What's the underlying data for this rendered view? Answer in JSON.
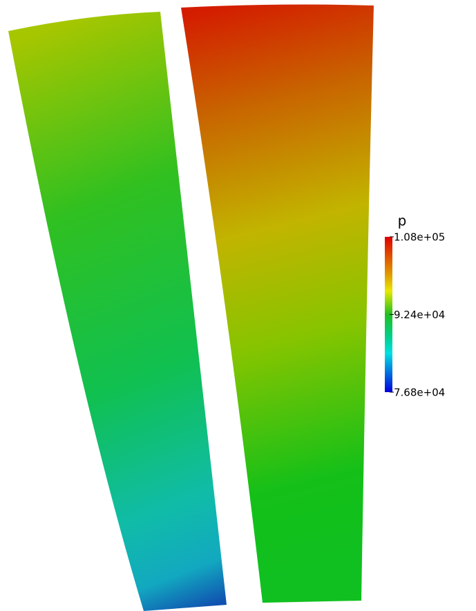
{
  "chart_data": {
    "type": "contour",
    "colorbar": {
      "title": "p",
      "lim": [
        76800,
        108000
      ],
      "ticks": [
        {
          "value": 108000,
          "label": "1.08e+05"
        },
        {
          "value": 92400,
          "label": "9.24e+04"
        },
        {
          "value": 76800,
          "label": "7.68e+04"
        }
      ]
    }
  }
}
